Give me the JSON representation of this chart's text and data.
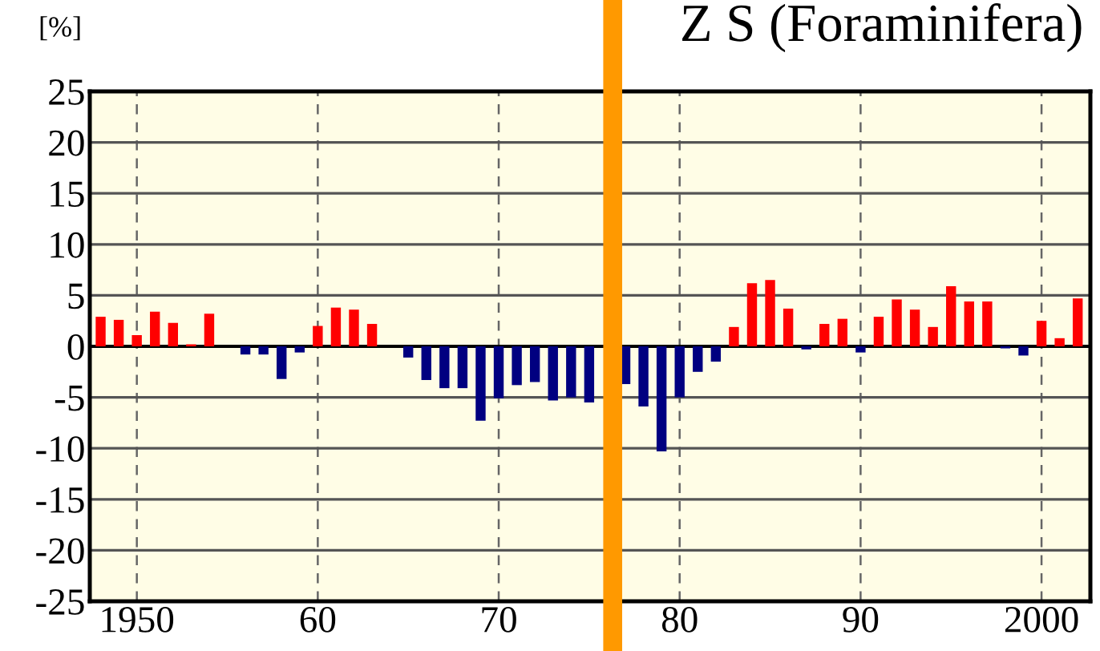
{
  "chart_data": {
    "type": "bar",
    "title": "Z S (Foraminifera)",
    "ylabel": "[%]",
    "x": [
      1948,
      1949,
      1950,
      1951,
      1952,
      1953,
      1954,
      1955,
      1956,
      1957,
      1958,
      1959,
      1960,
      1961,
      1962,
      1963,
      1964,
      1965,
      1966,
      1967,
      1968,
      1969,
      1970,
      1971,
      1972,
      1973,
      1974,
      1975,
      1976,
      1977,
      1978,
      1979,
      1980,
      1981,
      1982,
      1983,
      1984,
      1985,
      1986,
      1987,
      1988,
      1989,
      1990,
      1991,
      1992,
      1993,
      1994,
      1995,
      1996,
      1997,
      1998,
      1999,
      2000,
      2001,
      2002
    ],
    "values": [
      2.9,
      2.6,
      1.1,
      3.4,
      2.3,
      0.2,
      3.2,
      0,
      -0.8,
      -0.8,
      -3.2,
      -0.6,
      2.0,
      3.8,
      3.6,
      2.2,
      0,
      -1.1,
      -3.3,
      -4.1,
      -4.1,
      -7.3,
      -5.1,
      -3.8,
      -3.5,
      -5.3,
      -5.0,
      -5.5,
      null,
      -3.7,
      -5.9,
      -10.3,
      -5.0,
      -2.5,
      -1.5,
      1.9,
      6.2,
      6.5,
      3.7,
      -0.3,
      2.2,
      2.7,
      -0.6,
      2.9,
      4.6,
      3.6,
      1.9,
      5.9,
      4.4,
      4.4,
      -0.2,
      -0.9,
      2.5,
      0.8,
      4.7
    ],
    "colors": [
      "#ff0000",
      "#ff0000",
      "#ff0000",
      "#ff0000",
      "#ff0000",
      "#ff0000",
      "#ff0000",
      "#ff0000",
      "#000080",
      "#000080",
      "#000080",
      "#000080",
      "#ff0000",
      "#ff0000",
      "#ff0000",
      "#ff0000",
      "#ff0000",
      "#000080",
      "#000080",
      "#000080",
      "#000080",
      "#000080",
      "#000080",
      "#000080",
      "#000080",
      "#000080",
      "#000080",
      "#000080",
      "#000080",
      "#000080",
      "#000080",
      "#000080",
      "#000080",
      "#000080",
      "#000080",
      "#ff0000",
      "#ff0000",
      "#ff0000",
      "#ff0000",
      "#000080",
      "#ff0000",
      "#ff0000",
      "#000080",
      "#ff0000",
      "#ff0000",
      "#ff0000",
      "#ff0000",
      "#ff0000",
      "#ff0000",
      "#ff0000",
      "#000080",
      "#000080",
      "#ff0000",
      "#ff0000",
      "#ff0000"
    ],
    "xlim": [
      1947.4,
      2002.7
    ],
    "ylim": [
      -25,
      25
    ],
    "xticks": [
      1950,
      {
        "value": 1960,
        "label": "60"
      },
      {
        "value": 1970,
        "label": "70"
      },
      {
        "value": 1980,
        "label": "80"
      },
      {
        "value": 1990,
        "label": "90"
      },
      2000
    ],
    "yticks": [
      -25,
      -20,
      -15,
      -10,
      -5,
      0,
      5,
      10,
      15,
      20,
      25
    ],
    "grid": true,
    "ref_lines": [
      {
        "axis": "x",
        "value": 1976.3,
        "color": "#ff9900"
      }
    ]
  }
}
